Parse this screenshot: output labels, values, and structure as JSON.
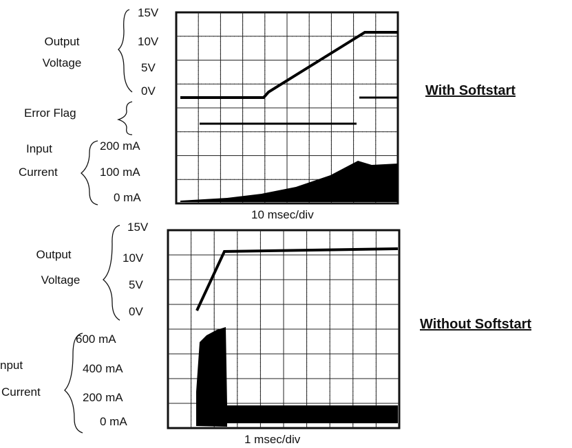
{
  "top": {
    "voltage_label": [
      "Output",
      "Voltage"
    ],
    "voltage_ticks": [
      "15V",
      "10V",
      "5V",
      "0V"
    ],
    "flag_label": "Error Flag",
    "current_label": [
      "Input",
      "Current"
    ],
    "current_ticks": [
      "200 mA",
      "100 mA",
      "0 mA"
    ],
    "timebase": "10 msec/div",
    "caption": "With Softstart"
  },
  "bottom": {
    "voltage_label": [
      "Output",
      "Voltage"
    ],
    "voltage_ticks": [
      "15V",
      "10V",
      "5V",
      "0V"
    ],
    "current_label": [
      "nput",
      "Current"
    ],
    "current_ticks": [
      "600 mA",
      "400 mA",
      "200 mA",
      "0 mA"
    ],
    "timebase": "1 msec/div",
    "caption": "Without Softstart"
  }
}
